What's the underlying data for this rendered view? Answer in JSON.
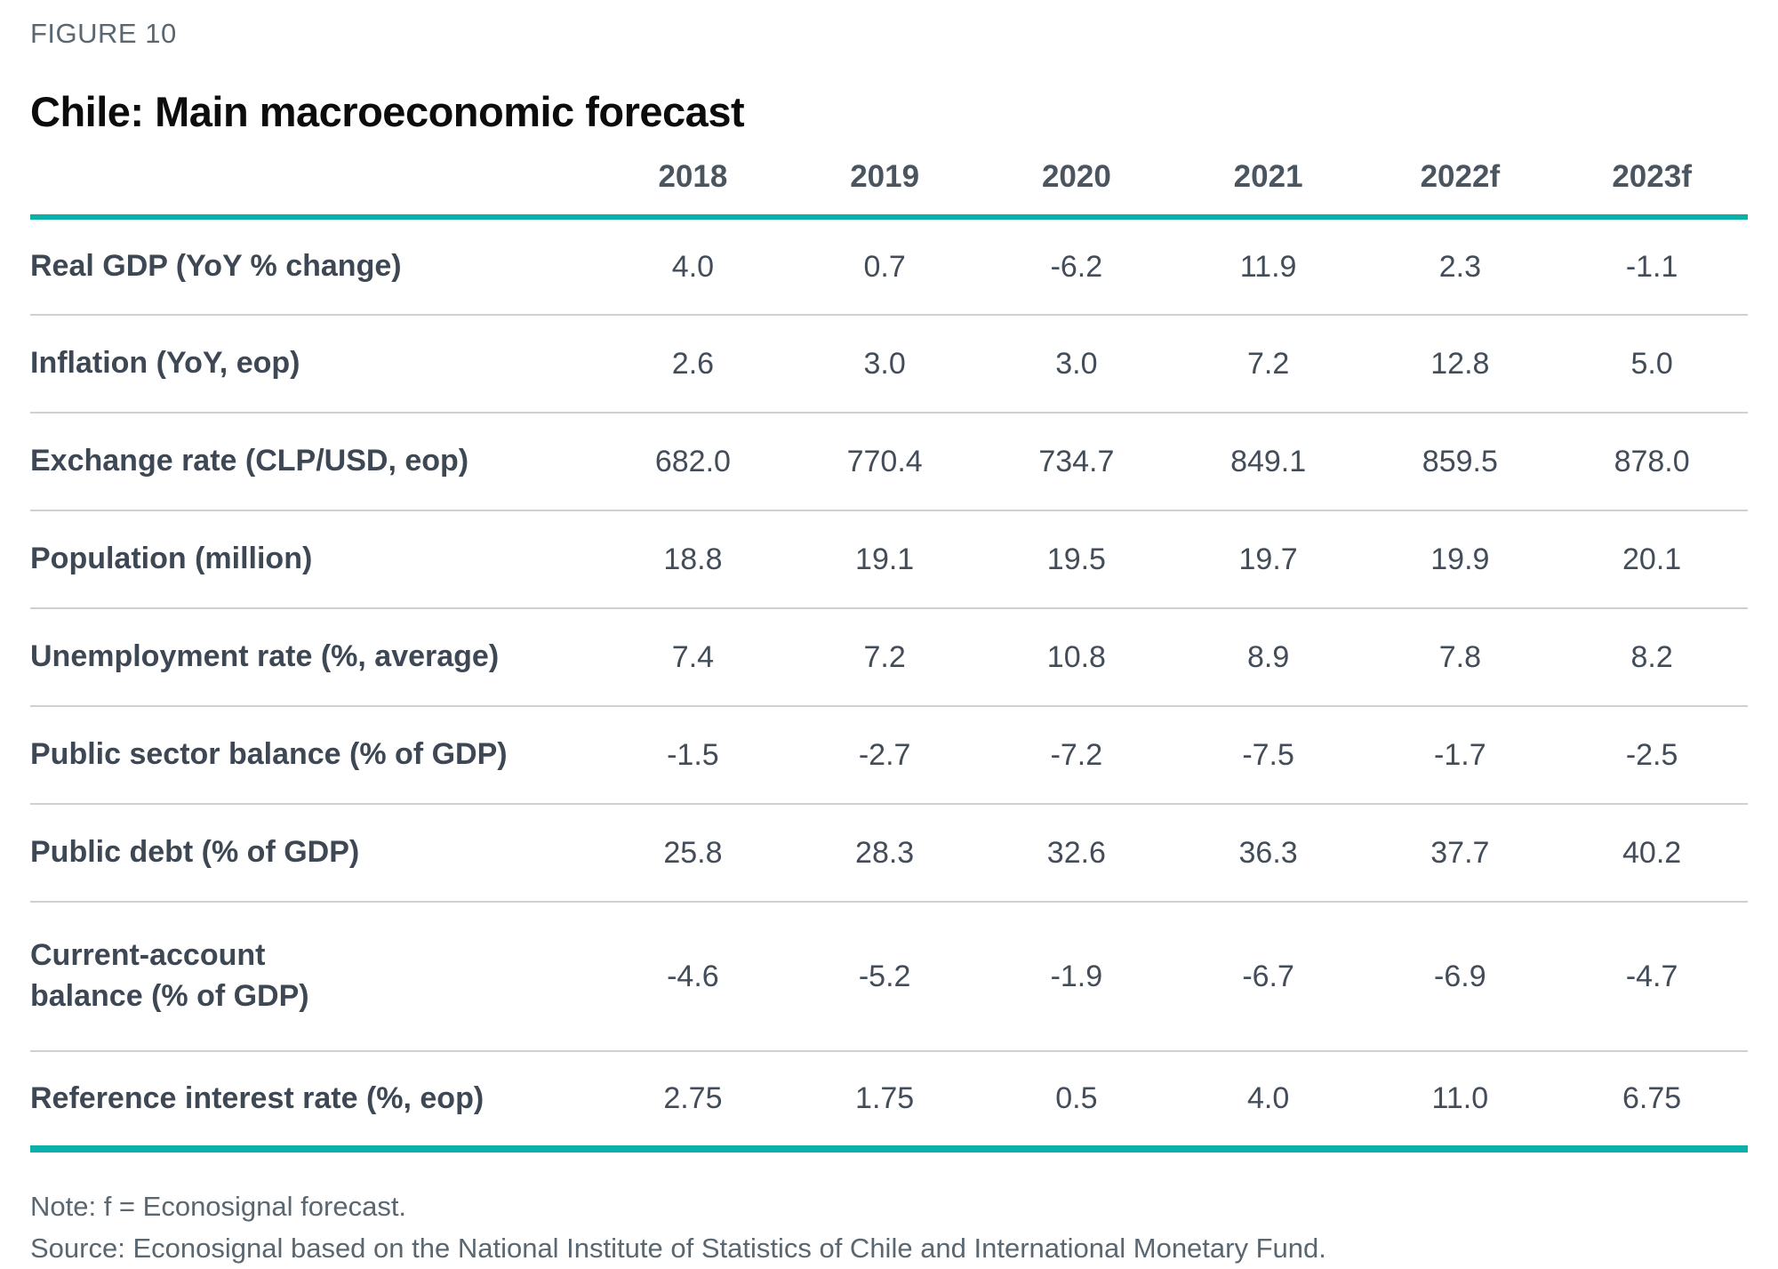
{
  "figure_label": "FIGURE 10",
  "title": "Chile: Main macroeconomic forecast",
  "colors": {
    "accent_teal": "#0ab0a9",
    "row_label_dark": "#3e4854",
    "value_gray": "#434d59",
    "muted_gray": "#5a6771",
    "separator_gray": "#cdd1d4"
  },
  "chart_data": {
    "type": "table",
    "title": "Chile: Main macroeconomic forecast",
    "columns": [
      "2018",
      "2019",
      "2020",
      "2021",
      "2022f",
      "2023f"
    ],
    "rows": [
      {
        "label": "Real GDP (YoY % change)",
        "values": [
          "4.0",
          "0.7",
          "-6.2",
          "11.9",
          "2.3",
          "-1.1"
        ]
      },
      {
        "label": "Inflation (YoY, eop)",
        "values": [
          "2.6",
          "3.0",
          "3.0",
          "7.2",
          "12.8",
          "5.0"
        ]
      },
      {
        "label": "Exchange rate (CLP/USD, eop)",
        "values": [
          "682.0",
          "770.4",
          "734.7",
          "849.1",
          "859.5",
          "878.0"
        ]
      },
      {
        "label": "Population (million)",
        "values": [
          "18.8",
          "19.1",
          "19.5",
          "19.7",
          "19.9",
          "20.1"
        ]
      },
      {
        "label": "Unemployment rate (%, average)",
        "values": [
          "7.4",
          "7.2",
          "10.8",
          "8.9",
          "7.8",
          "8.2"
        ]
      },
      {
        "label": "Public sector balance (% of GDP)",
        "values": [
          "-1.5",
          "-2.7",
          "-7.2",
          "-7.5",
          "-1.7",
          "-2.5"
        ]
      },
      {
        "label": "Public debt (% of GDP)",
        "values": [
          "25.8",
          "28.3",
          "32.6",
          "36.3",
          "37.7",
          "40.2"
        ]
      },
      {
        "label": "Current-account\nbalance (% of GDP)",
        "values": [
          "-4.6",
          "-5.2",
          "-1.9",
          "-6.7",
          "-6.9",
          "-4.7"
        ]
      },
      {
        "label": "Reference interest rate (%, eop)",
        "values": [
          "2.75",
          "1.75",
          "0.5",
          "4.0",
          "11.0",
          "6.75"
        ]
      }
    ]
  },
  "footer": {
    "note": "Note: f = Econosignal forecast.",
    "source": "Source: Econosignal based on the National Institute of Statistics of Chile and International Monetary Fund."
  }
}
